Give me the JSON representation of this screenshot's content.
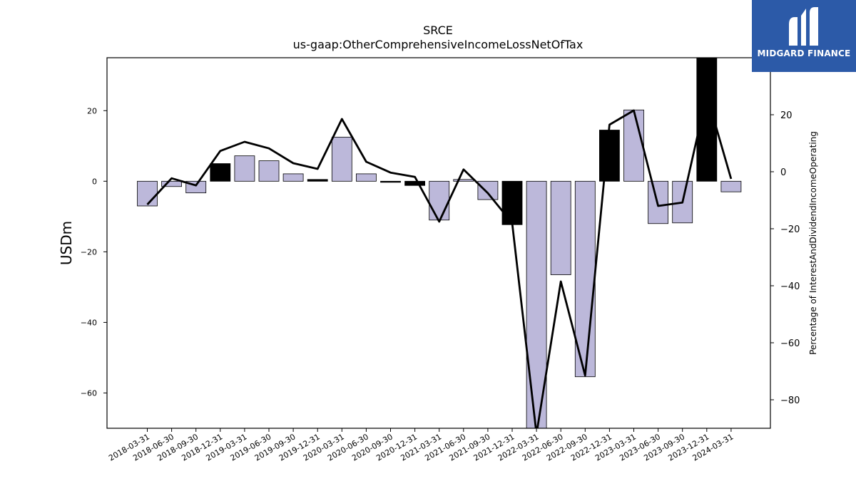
{
  "logo": {
    "text": "MIDGARD FINANCE",
    "bg_color": "#2c5aa8",
    "icon": "midgard-m-logo-icon"
  },
  "colors": {
    "bar_fill": "#bcb8da",
    "bar_highlight": "#000000",
    "line": "#000000"
  },
  "chart_data": {
    "type": "bar",
    "title": "SRCE",
    "subtitle": "us-gaap:OtherComprehensiveIncomeLossNetOfTax",
    "ylabel": "USDm",
    "y2label": "Percentage of InterestAndDividendIncomeOperating",
    "ylim": [
      -70,
      35
    ],
    "y2lim": [
      -90,
      40
    ],
    "yticks": [
      -60,
      -40,
      -20,
      0,
      20
    ],
    "y2ticks": [
      -80,
      -60,
      -40,
      -20,
      0,
      20
    ],
    "grid": false,
    "categories": [
      "2018-03-31",
      "2018-06-30",
      "2018-09-30",
      "2018-12-31",
      "2019-03-31",
      "2019-06-30",
      "2019-09-30",
      "2019-12-31",
      "2020-03-31",
      "2020-06-30",
      "2020-09-30",
      "2020-12-31",
      "2021-03-31",
      "2021-06-30",
      "2021-09-30",
      "2021-12-31",
      "2022-03-31",
      "2022-06-30",
      "2022-09-30",
      "2022-12-31",
      "2023-03-31",
      "2023-06-30",
      "2023-09-30",
      "2023-12-31",
      "2024-03-31"
    ],
    "series": [
      {
        "type": "bar",
        "axis": "left",
        "values": [
          -7,
          -1.5,
          -3.3,
          5,
          7.2,
          5.8,
          2.1,
          0.5,
          12.5,
          2.1,
          -0.3,
          -1.2,
          -11,
          0.5,
          -5.2,
          -12.3,
          -70,
          -26.5,
          -55.4,
          14.5,
          20.2,
          -12,
          -11.8,
          35,
          -3
        ],
        "highlighted": [
          false,
          false,
          false,
          true,
          false,
          false,
          false,
          true,
          false,
          false,
          true,
          true,
          false,
          false,
          false,
          true,
          false,
          false,
          false,
          true,
          false,
          false,
          false,
          true,
          false
        ]
      },
      {
        "type": "line",
        "axis": "right",
        "values": [
          -11.5,
          -2.3,
          -4.8,
          7.3,
          10.5,
          8.2,
          3,
          1,
          18.5,
          3.5,
          -0.3,
          -1.8,
          -17.5,
          0.8,
          -7.5,
          -18,
          -92,
          -38.5,
          -71.5,
          16.5,
          21.5,
          -12,
          -10.8,
          27,
          -2.5
        ]
      }
    ]
  }
}
